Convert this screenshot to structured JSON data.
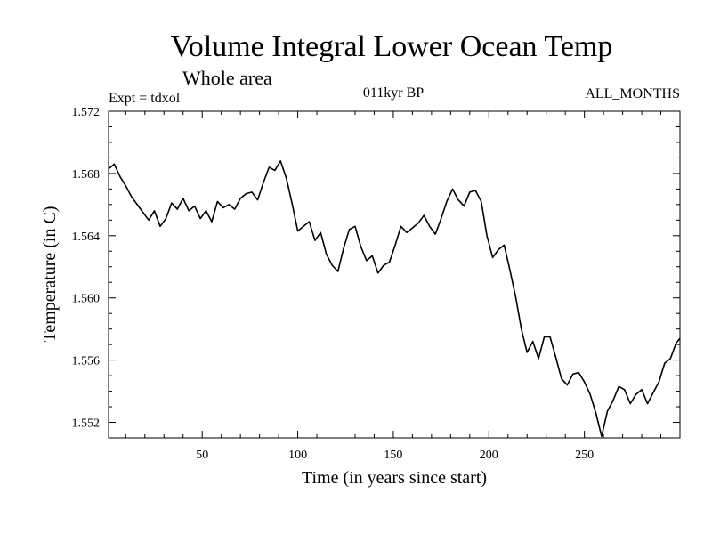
{
  "chart_data": {
    "type": "line",
    "title": "Volume Integral Lower Ocean Temp",
    "subtitle": "Whole area",
    "expt_label": "Expt = tdxol",
    "period_label": "011kyr BP",
    "months_label": "ALL_MONTHS",
    "xlabel": "Time (in years since start)",
    "ylabel": "Temperature (in C)",
    "xlim": [
      1,
      300
    ],
    "ylim": [
      1.551,
      1.572
    ],
    "xticks": [
      50,
      100,
      150,
      200,
      250
    ],
    "yticks": [
      1.552,
      1.556,
      1.56,
      1.564,
      1.568,
      1.572
    ],
    "ytick_labels": [
      "1.552",
      "1.556",
      "1.560",
      "1.564",
      "1.568",
      "1.572"
    ],
    "grid": false,
    "series": [
      {
        "color": "#000000",
        "x": [
          1,
          4,
          7,
          10,
          13,
          16,
          19,
          22,
          25,
          28,
          31,
          34,
          37,
          40,
          43,
          46,
          49,
          52,
          55,
          58,
          61,
          64,
          67,
          70,
          73,
          76,
          79,
          82,
          85,
          88,
          91,
          94,
          97,
          100,
          103,
          106,
          109,
          112,
          115,
          118,
          121,
          124,
          127,
          130,
          133,
          136,
          139,
          142,
          145,
          148,
          151,
          154,
          157,
          160,
          163,
          166,
          169,
          172,
          175,
          178,
          181,
          184,
          187,
          190,
          193,
          196,
          199,
          202,
          205,
          208,
          211,
          214,
          217,
          220,
          223,
          226,
          229,
          232,
          235,
          238,
          241,
          244,
          247,
          250,
          253,
          256,
          259,
          262,
          265,
          268,
          271,
          274,
          277,
          280,
          283,
          286,
          289,
          292,
          295,
          298,
          300
        ],
        "y": [
          1.5683,
          1.5686,
          1.5678,
          1.5672,
          1.5665,
          1.566,
          1.5655,
          1.565,
          1.5656,
          1.5646,
          1.5651,
          1.5661,
          1.5657,
          1.5664,
          1.5656,
          1.5659,
          1.5651,
          1.5656,
          1.5649,
          1.5662,
          1.5658,
          1.566,
          1.5657,
          1.5664,
          1.5667,
          1.5668,
          1.5663,
          1.5674,
          1.5684,
          1.5682,
          1.5688,
          1.5677,
          1.5661,
          1.5643,
          1.5646,
          1.5649,
          1.5637,
          1.5642,
          1.5628,
          1.5621,
          1.5617,
          1.5632,
          1.5644,
          1.5646,
          1.5633,
          1.5624,
          1.5627,
          1.5616,
          1.5621,
          1.5623,
          1.5634,
          1.5646,
          1.5642,
          1.5645,
          1.5648,
          1.5653,
          1.5646,
          1.5641,
          1.5651,
          1.5662,
          1.567,
          1.5663,
          1.5659,
          1.5668,
          1.5669,
          1.5662,
          1.564,
          1.5626,
          1.5631,
          1.5634,
          1.5618,
          1.5601,
          1.558,
          1.5565,
          1.5572,
          1.5561,
          1.5575,
          1.5575,
          1.5562,
          1.5548,
          1.5544,
          1.5551,
          1.5552,
          1.5546,
          1.5538,
          1.5526,
          1.5511,
          1.5527,
          1.5534,
          1.5543,
          1.5541,
          1.5532,
          1.5538,
          1.5541,
          1.5532,
          1.5539,
          1.5546,
          1.5558,
          1.5561,
          1.5571,
          1.5574
        ]
      }
    ]
  }
}
